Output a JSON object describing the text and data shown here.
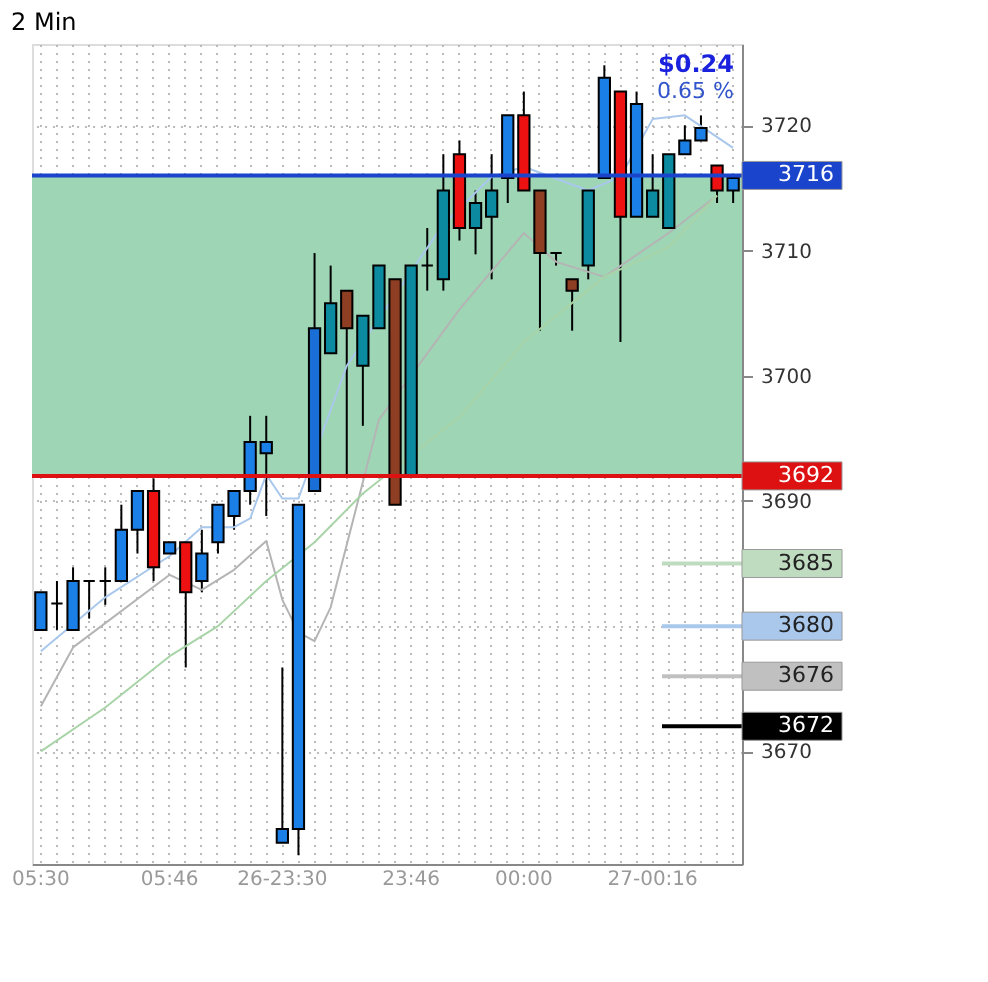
{
  "chart_data": {
    "type": "candlestick",
    "title": "2 Min",
    "categories": [
      "05:30",
      null,
      null,
      null,
      null,
      null,
      null,
      null,
      "05:46",
      null,
      null,
      null,
      null,
      null,
      null,
      "26-23:30",
      null,
      null,
      null,
      null,
      null,
      null,
      null,
      "23:46",
      null,
      null,
      null,
      null,
      null,
      null,
      "00:00",
      null,
      null,
      null,
      null,
      null,
      null,
      null,
      "27-00:16",
      null,
      null,
      null,
      null,
      null
    ],
    "ohlc": [
      [
        3679.7,
        3682.7,
        3679.7,
        3682.7
      ],
      [
        3681.8,
        3683.6,
        3679.7,
        3681.8
      ],
      [
        3679.7,
        3684.7,
        3679.7,
        3683.6
      ],
      [
        3683.6,
        3683.6,
        3680.6,
        3683.6
      ],
      [
        3683.6,
        3684.7,
        3681.7,
        3683.6
      ],
      [
        3683.6,
        3689.7,
        3683.6,
        3687.7
      ],
      [
        3687.7,
        3690.8,
        3685.8,
        3690.8
      ],
      [
        3690.8,
        3691.8,
        3683.6,
        3684.7
      ],
      [
        3685.8,
        3686.7,
        3685.8,
        3686.7
      ],
      [
        3686.7,
        3686.7,
        3676.7,
        3682.7
      ],
      [
        3683.6,
        3687.7,
        3682.7,
        3685.8
      ],
      [
        3686.7,
        3689.7,
        3685.8,
        3689.7
      ],
      [
        3688.8,
        3690.8,
        3687.7,
        3690.8
      ],
      [
        3690.8,
        3696.8,
        3689.7,
        3694.7
      ],
      [
        3693.8,
        3696.8,
        3688.8,
        3694.7
      ],
      [
        3662.7,
        3676.7,
        3662.7,
        3663.8
      ],
      [
        3663.8,
        3689.7,
        3661.7,
        3689.7
      ],
      [
        3690.8,
        3709.8,
        3690.8,
        3703.8
      ],
      [
        3701.8,
        3708.8,
        3701.8,
        3705.8
      ],
      [
        3706.8,
        3706.8,
        3692,
        3703.8
      ],
      [
        3700.8,
        3704.8,
        3696,
        3704.8
      ],
      [
        3703.8,
        3708.8,
        3703.8,
        3708.8
      ],
      [
        3707.7,
        3707.7,
        3689.7,
        3689.7
      ],
      [
        3692,
        3708.8,
        3692,
        3708.8
      ],
      [
        3708.8,
        3711.8,
        3706.8,
        3708.8
      ],
      [
        3707.7,
        3717.7,
        3706.8,
        3714.8
      ],
      [
        3717.7,
        3718.8,
        3710.8,
        3711.8
      ],
      [
        3711.8,
        3714.8,
        3709.7,
        3713.8
      ],
      [
        3712.7,
        3717.7,
        3707.7,
        3714.8
      ],
      [
        3715.8,
        3720.8,
        3713.8,
        3720.8
      ],
      [
        3720.8,
        3722.7,
        3714.8,
        3714.8
      ],
      [
        3714.8,
        3714.8,
        3703.6,
        3709.8
      ],
      [
        3709.8,
        3709.8,
        3708.8,
        3709.8
      ],
      [
        3707.7,
        3707.7,
        3703.6,
        3706.8
      ],
      [
        3708.8,
        3714.8,
        3707.7,
        3714.8
      ],
      [
        3715.8,
        3724.8,
        3715.8,
        3723.8
      ],
      [
        3722.7,
        3722.7,
        3702.7,
        3712.7
      ],
      [
        3712.7,
        3722.7,
        3712.7,
        3721.7
      ],
      [
        3712.7,
        3717.7,
        3712.7,
        3714.8
      ],
      [
        3711.8,
        3717.7,
        3711.8,
        3717.7
      ],
      [
        3717.7,
        3720,
        3717.7,
        3718.8
      ],
      [
        3718.8,
        3720.8,
        3718.8,
        3719.8
      ],
      [
        3716.8,
        3716.8,
        3713.8,
        3714.8
      ],
      [
        3714.8,
        3715.8,
        3713.8,
        3715.8
      ]
    ],
    "colors": [
      "#1a7fe6",
      "#000000",
      "#1a7fe6",
      "#000000",
      "#000000",
      "#1a7fe6",
      "#1a7fe6",
      "#ee1111",
      "#1a7fe6",
      "#ee1111",
      "#1a7fe6",
      "#1a7fe6",
      "#1a7fe6",
      "#1a7fe6",
      "#1a7fe6",
      "#1a7fe6",
      "#1a7fe6",
      "#1a6fd6",
      "#0b8aa0",
      "#8e3e22",
      "#0b8aa0",
      "#0b8aa0",
      "#8e3e22",
      "#0b8aa0",
      "#000000",
      "#0b8aa0",
      "#ee1111",
      "#0b8aa0",
      "#0b8aa0",
      "#1a7fe6",
      "#ee1111",
      "#8e3e22",
      "#000000",
      "#8e3e22",
      "#0b8aa0",
      "#1a7fe6",
      "#ee1111",
      "#1a7fe6",
      "#0b8aa0",
      "#0b8aa0",
      "#1a7fe6",
      "#1a7fe6",
      "#ee1111",
      "#1a7fe6"
    ],
    "series": [
      {
        "type": "line",
        "color": "#a9c8ec",
        "values": [
          3678.0,
          null,
          null,
          null,
          3682.3,
          null,
          null,
          null,
          3685.6,
          null,
          3687.9,
          null,
          3687.9,
          3688.6,
          3692.1,
          3690.2,
          3690.2,
          null,
          null,
          3700.8,
          null,
          null,
          null,
          null,
          null,
          3712.1,
          null,
          null,
          3715.9,
          null,
          3716.7,
          null,
          null,
          null,
          3714.8,
          null,
          3715.9,
          null,
          3720.5,
          null,
          3720.8,
          null,
          null,
          3718.2
        ]
      },
      {
        "type": "line",
        "color": "#b4b4b4",
        "values": [
          3673.6,
          null,
          3678.3,
          null,
          null,
          null,
          null,
          null,
          3684.1,
          null,
          3682.9,
          null,
          3684.5,
          null,
          3686.8,
          3682.1,
          3679.5,
          3678.8,
          3681.5,
          null,
          null,
          3696.5,
          null,
          null,
          null,
          null,
          3705.3,
          null,
          null,
          null,
          3711.4,
          null,
          3709.1,
          null,
          null,
          3707.9,
          null,
          null,
          null,
          3711.4,
          null,
          null,
          3714.4,
          null
        ]
      },
      {
        "type": "line",
        "color": "#a8d4a8",
        "values": [
          3670.0,
          null,
          null,
          null,
          3673.5,
          null,
          null,
          null,
          3677.6,
          null,
          null,
          3680.0,
          null,
          null,
          3683.6,
          null,
          null,
          3686.7,
          null,
          null,
          3690.6,
          null,
          null,
          null,
          null,
          null,
          3696.7,
          null,
          null,
          null,
          3702.7,
          null,
          null,
          null,
          null,
          3707.9,
          null,
          null,
          null,
          3710.3,
          null,
          null,
          3714.4,
          null
        ]
      }
    ],
    "ylim": [
      3661,
      3726.5
    ],
    "yticks": [
      3670,
      {
        "value": 3680,
        "label": null
      },
      3690,
      3700,
      3710,
      3720
    ],
    "bands": [
      {
        "axis": "y",
        "from": 3692,
        "to": 3716,
        "color": "#9ed5b5"
      }
    ],
    "ref_lines": [
      {
        "axis": "y",
        "value": 3716,
        "label": "3716",
        "color": "#1a44cc",
        "line_style": "solid"
      },
      {
        "axis": "y",
        "value": 3692,
        "label": "3692",
        "color": "#dd1111",
        "line_style": "solid"
      },
      {
        "axis": "y",
        "value": 3685,
        "label": "3685",
        "color": "#c0dcc0"
      },
      {
        "axis": "y",
        "value": 3680,
        "label": "3680",
        "color": "#a9c8ec"
      },
      {
        "axis": "y",
        "value": 3676,
        "label": "3676",
        "color": "#c0c0c0"
      },
      {
        "axis": "y",
        "value": 3672,
        "label": "3672",
        "color": "#000000"
      }
    ],
    "annotations": [
      "$0.24",
      "0.65 %"
    ],
    "grid": true
  }
}
